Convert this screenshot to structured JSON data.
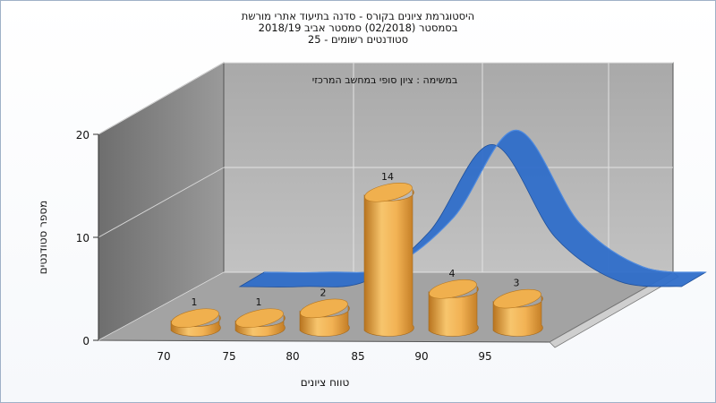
{
  "chart_data": {
    "type": "bar",
    "title_lines": [
      "היסטוגרמת ציונים בקורס - סדנה בתיעוד אתרי מורשת",
      "בסמסטר  (02/2018)  סמסטר אביב 2018/19",
      "סטודנטים רשומים - 25"
    ],
    "subtitle": "במשימה : ציון סופי במחשב המרכזי",
    "xlabel": "טווח ציונים",
    "ylabel": "מספר סטודנטים",
    "x_ticks": [
      "70",
      "75",
      "80",
      "85",
      "90",
      "95"
    ],
    "y_ticks": [
      "0",
      "10",
      "20"
    ],
    "ylim": [
      0,
      20
    ],
    "bins": [
      70,
      75,
      80,
      85,
      90,
      95
    ],
    "values": [
      1,
      1,
      2,
      14,
      4,
      3
    ],
    "data_labels": [
      "1",
      "1",
      "2",
      "14",
      "4",
      "3"
    ],
    "curve": {
      "x": [
        80,
        82.5,
        85,
        87.5,
        90,
        92.5,
        95,
        97.5
      ],
      "y": [
        0,
        0,
        0.5,
        5,
        13,
        4.5,
        0.5,
        0
      ]
    },
    "grid": true,
    "colors": {
      "bars": "#e6a84c",
      "curve": "#2f6ec9",
      "back_wall": "#b5b5b5",
      "side_wall": "#888888",
      "floor": "#a9a9a9"
    }
  }
}
